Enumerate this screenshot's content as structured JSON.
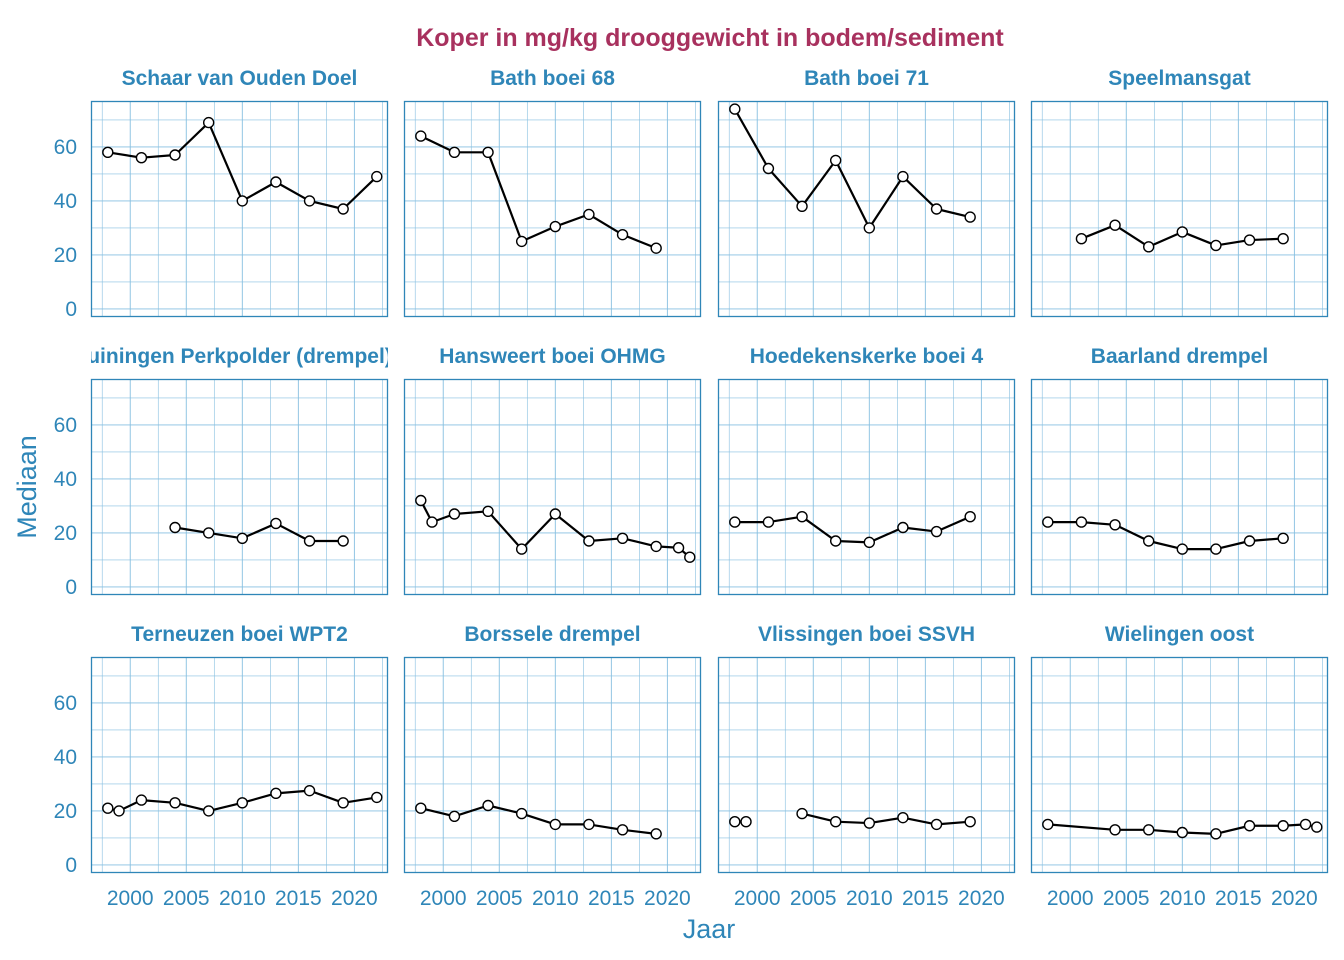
{
  "chart_data": {
    "type": "line",
    "title": "Koper in mg/kg drooggewicht in bodem/sediment",
    "xlabel": "Jaar",
    "ylabel": "Mediaan",
    "xlim": [
      1996.5,
      2023
    ],
    "ylim": [
      -3,
      77
    ],
    "xticks": [
      2000,
      2005,
      2010,
      2015,
      2020
    ],
    "yticks": [
      0,
      20,
      40,
      60
    ],
    "grid": true,
    "legend": "none",
    "colors": {
      "title": "#a8315e",
      "accent": "#2f86b8",
      "grid": "#86bfe0",
      "line": "#000000",
      "marker_fill": "#ffffff"
    },
    "panels": [
      {
        "name": "Schaar van Ouden Doel",
        "segments": [
          [
            [
              1998,
              58
            ],
            [
              2001,
              56
            ],
            [
              2004,
              57
            ],
            [
              2007,
              69
            ],
            [
              2010,
              40
            ],
            [
              2013,
              47
            ],
            [
              2016,
              40
            ],
            [
              2019,
              37
            ],
            [
              2022,
              49
            ]
          ]
        ]
      },
      {
        "name": "Bath boei 68",
        "segments": [
          [
            [
              1998,
              64
            ],
            [
              2001,
              58
            ],
            [
              2004,
              58
            ],
            [
              2007,
              25
            ],
            [
              2010,
              30.5
            ],
            [
              2013,
              35
            ],
            [
              2016,
              27.5
            ],
            [
              2019,
              22.5
            ]
          ]
        ]
      },
      {
        "name": "Bath boei 71",
        "segments": [
          [
            [
              1998,
              74
            ],
            [
              2001,
              52
            ],
            [
              2004,
              38
            ],
            [
              2007,
              55
            ],
            [
              2010,
              30
            ],
            [
              2013,
              49
            ],
            [
              2016,
              37
            ],
            [
              2019,
              34
            ]
          ]
        ]
      },
      {
        "name": "Speelmansgat",
        "segments": [
          [
            [
              2001,
              26
            ],
            [
              2004,
              31
            ],
            [
              2007,
              23
            ],
            [
              2010,
              28.5
            ],
            [
              2013,
              23.5
            ],
            [
              2016,
              25.5
            ],
            [
              2019,
              26
            ]
          ]
        ]
      },
      {
        "name": "Hansweert boei OHMG... uiningen Perkpolder (drempel)",
        "display_name": "uiningen Perkpolder (drempel)",
        "segments": [
          [
            [
              2004,
              22
            ],
            [
              2007,
              20
            ],
            [
              2010,
              18
            ],
            [
              2013,
              23.5
            ],
            [
              2016,
              17
            ],
            [
              2019,
              17
            ]
          ]
        ]
      },
      {
        "name": "Hansweert boei OHMG",
        "segments": [
          [
            [
              1998,
              32
            ],
            [
              1999,
              24
            ],
            [
              2001,
              27
            ],
            [
              2004,
              28
            ],
            [
              2007,
              14
            ],
            [
              2010,
              27
            ],
            [
              2013,
              17
            ],
            [
              2016,
              18
            ],
            [
              2019,
              15
            ],
            [
              2021,
              14.5
            ],
            [
              2022,
              11
            ]
          ]
        ]
      },
      {
        "name": "Hoedekenskerke boei 4",
        "segments": [
          [
            [
              1998,
              24
            ],
            [
              2001,
              24
            ],
            [
              2004,
              26
            ],
            [
              2007,
              17
            ],
            [
              2010,
              16.5
            ],
            [
              2013,
              22
            ],
            [
              2016,
              20.5
            ],
            [
              2019,
              26
            ]
          ]
        ]
      },
      {
        "name": "Baarland drempel",
        "segments": [
          [
            [
              1998,
              24
            ],
            [
              2001,
              24
            ],
            [
              2004,
              23
            ],
            [
              2007,
              17
            ],
            [
              2010,
              14
            ],
            [
              2013,
              14
            ],
            [
              2016,
              17
            ],
            [
              2019,
              18
            ]
          ]
        ]
      },
      {
        "name": "Terneuzen boei WPT2",
        "segments": [
          [
            [
              1998,
              21
            ],
            [
              1999,
              20
            ],
            [
              2001,
              24
            ],
            [
              2004,
              23
            ],
            [
              2007,
              20
            ],
            [
              2010,
              23
            ],
            [
              2013,
              26.5
            ],
            [
              2016,
              27.5
            ],
            [
              2019,
              23
            ],
            [
              2022,
              25
            ]
          ]
        ]
      },
      {
        "name": "Borssele drempel",
        "segments": [
          [
            [
              1998,
              21
            ],
            [
              2001,
              18
            ],
            [
              2004,
              22
            ],
            [
              2007,
              19
            ],
            [
              2010,
              15
            ],
            [
              2013,
              15
            ],
            [
              2016,
              13
            ],
            [
              2019,
              11.5
            ]
          ]
        ]
      },
      {
        "name": "Vlissingen boei SSVH",
        "segments": [
          [
            [
              1998,
              16
            ]
          ],
          [
            [
              1999,
              16
            ]
          ],
          [
            [
              2004,
              19
            ],
            [
              2007,
              16
            ],
            [
              2010,
              15.5
            ],
            [
              2013,
              17.5
            ],
            [
              2016,
              15
            ],
            [
              2019,
              16
            ]
          ]
        ]
      },
      {
        "name": "Wielingen oost",
        "segments": [
          [
            [
              1998,
              15
            ],
            [
              2004,
              13
            ],
            [
              2007,
              13
            ],
            [
              2010,
              12
            ],
            [
              2013,
              11.5
            ],
            [
              2016,
              14.5
            ],
            [
              2019,
              14.5
            ],
            [
              2021,
              15
            ],
            [
              2022,
              14
            ]
          ]
        ]
      }
    ]
  }
}
